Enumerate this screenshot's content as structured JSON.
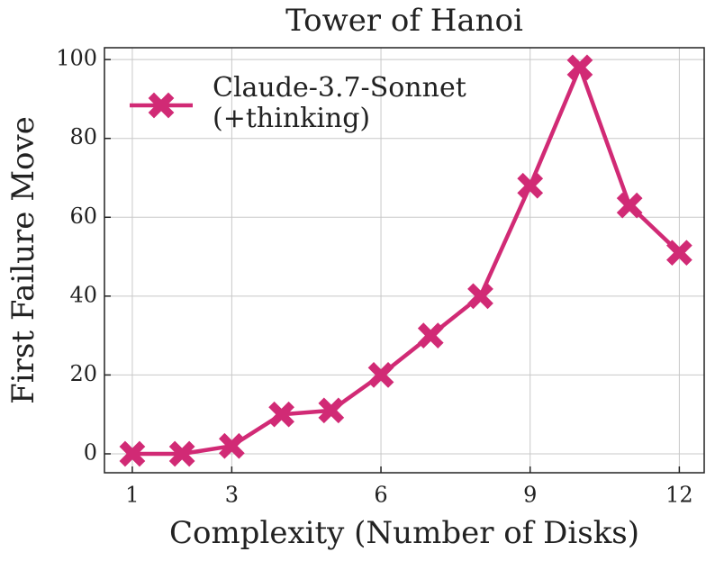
{
  "chart_data": {
    "type": "line",
    "title": "Tower of Hanoi",
    "x_label": "Complexity (Number of Disks)",
    "y_label": "First Failure Move",
    "x": [
      1,
      2,
      3,
      4,
      5,
      6,
      7,
      8,
      9,
      10,
      11,
      12
    ],
    "series": [
      {
        "name": "Claude-3.7-Sonnet\n(+thinking)",
        "color": "#d12a75",
        "values": [
          0,
          0,
          2,
          10,
          11,
          20,
          30,
          40,
          68,
          98,
          63,
          51
        ]
      }
    ],
    "xlim": [
      0.44,
      12.5
    ],
    "ylim": [
      -4.8,
      103
    ],
    "xticks": [
      1,
      3,
      6,
      9,
      12
    ],
    "yticks": [
      0,
      20,
      40,
      60,
      80,
      100
    ],
    "grid": true,
    "legend": "upper-left"
  }
}
